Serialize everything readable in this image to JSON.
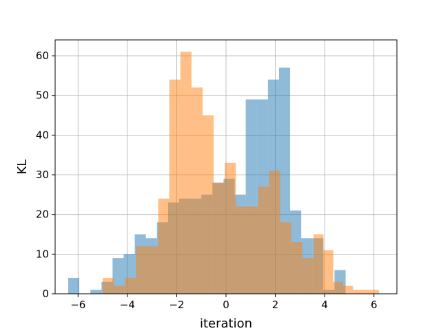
{
  "chart_data": {
    "type": "histogram",
    "title": "",
    "xlabel": "iteration",
    "ylabel": "KL",
    "xlim": [
      -6.93,
      6.93
    ],
    "ylim": [
      0,
      64
    ],
    "xticks": [
      -6,
      -4,
      -2,
      0,
      2,
      4,
      6
    ],
    "yticks": [
      0,
      10,
      20,
      30,
      40,
      50,
      60
    ],
    "grid": true,
    "legend": "none",
    "series": [
      {
        "color": "#1f77b4",
        "opacity": 0.5,
        "bin_edges": [
          -6.4,
          -5.95,
          -5.5,
          -5.05,
          -4.6,
          -4.15,
          -3.7,
          -3.25,
          -2.8,
          -2.35,
          -1.9,
          -1.45,
          -1.0,
          -0.55,
          -0.1,
          0.35,
          0.8,
          1.25,
          1.7,
          2.15,
          2.6,
          3.05,
          3.5,
          3.95,
          4.4,
          4.85
        ],
        "counts": [
          4,
          0,
          1,
          3,
          9,
          10,
          15,
          14,
          18,
          23,
          24,
          24,
          25,
          28,
          29,
          25,
          49,
          49,
          54,
          57,
          21,
          14,
          14,
          1,
          6
        ]
      },
      {
        "color": "#ff7f0e",
        "opacity": 0.5,
        "bin_edges": [
          -5.0,
          -4.55,
          -4.1,
          -3.65,
          -3.2,
          -2.75,
          -2.3,
          -1.85,
          -1.4,
          -0.95,
          -0.5,
          -0.05,
          0.4,
          0.85,
          1.3,
          1.75,
          2.2,
          2.65,
          3.1,
          3.55,
          3.95,
          4.35,
          4.75,
          5.15,
          5.6,
          6.2
        ],
        "counts": [
          4,
          2,
          4,
          12,
          12,
          24,
          54,
          61,
          52,
          45,
          28,
          33,
          22,
          22,
          27,
          31,
          18,
          13,
          9,
          15,
          11,
          3,
          2,
          1,
          1
        ]
      }
    ]
  }
}
